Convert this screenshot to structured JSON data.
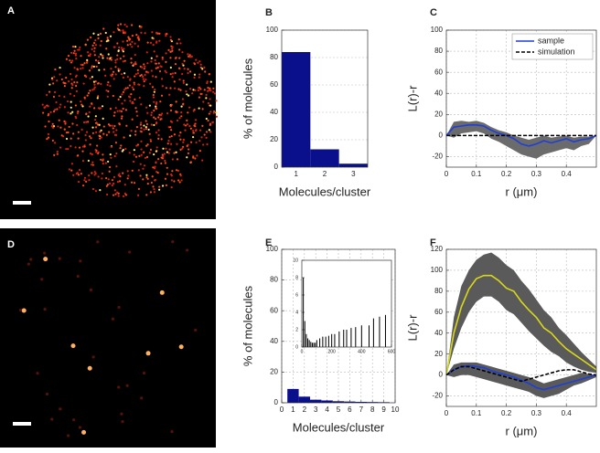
{
  "panels": [
    "A",
    "B",
    "C",
    "D",
    "E",
    "F"
  ],
  "chart_data": [
    {
      "type": "bar",
      "categories": [
        "1",
        "2",
        "3"
      ],
      "values": [
        84,
        13,
        2.5
      ],
      "color": "#0a0f8c",
      "ylim": [
        0,
        100
      ],
      "yticks": [
        0,
        20,
        40,
        60,
        80,
        100
      ],
      "grid": true,
      "y_label": "% of molecules",
      "x_label": "Molecules/cluster"
    },
    {
      "type": "line",
      "x": [
        0,
        0.025,
        0.05,
        0.075,
        0.1,
        0.125,
        0.15,
        0.175,
        0.2,
        0.225,
        0.25,
        0.275,
        0.3,
        0.325,
        0.35,
        0.375,
        0.4,
        0.425,
        0.45,
        0.475,
        0.5
      ],
      "xlim": [
        0,
        0.5
      ],
      "xticks": [
        0,
        0.1,
        0.2,
        0.3,
        0.4
      ],
      "ylim": [
        -30,
        100
      ],
      "yticks": [
        -20,
        0,
        20,
        40,
        60,
        80,
        100
      ],
      "grid": true,
      "y_label": "L(r)-r",
      "x_label": "r (μm)",
      "legend": "upper right",
      "bands": [
        {
          "color": "#6b6b6b",
          "lower": [
            0,
            -2,
            2,
            3,
            4,
            2,
            -3,
            -6,
            -10,
            -14,
            -18,
            -20,
            -22,
            -18,
            -16,
            -14,
            -12,
            -14,
            -10,
            -8,
            0
          ],
          "upper": [
            0,
            13,
            14,
            13,
            14,
            12,
            8,
            5,
            3,
            0,
            -2,
            -4,
            -2,
            0,
            -2,
            -1,
            0,
            -2,
            -1,
            -1,
            0
          ]
        }
      ],
      "series": [
        {
          "name": "sample",
          "color": "#1f3fd6",
          "values": [
            0,
            8,
            9,
            10,
            10,
            9,
            5,
            2,
            0,
            -3,
            -8,
            -10,
            -8,
            -5,
            -7,
            -5,
            -3,
            -6,
            -4,
            -3,
            0
          ]
        },
        {
          "name": "simulation",
          "color": "#000000",
          "dashed": true,
          "values": [
            0,
            0,
            0,
            0,
            0,
            0,
            0,
            0,
            0,
            0,
            0,
            0,
            0,
            0,
            0,
            0,
            0,
            0,
            0,
            0,
            0
          ]
        }
      ]
    },
    {
      "type": "bar",
      "x": [
        1,
        2,
        3,
        4,
        5,
        6,
        7,
        8,
        9
      ],
      "values": [
        9,
        4,
        2,
        1.5,
        1,
        0.8,
        0.6,
        0.5,
        0.4
      ],
      "color": "#0a0f8c",
      "xlim": [
        0,
        10
      ],
      "xticks": [
        0,
        1,
        2,
        3,
        4,
        5,
        6,
        7,
        8,
        9,
        10
      ],
      "ylim": [
        0,
        100
      ],
      "yticks": [
        0,
        20,
        40,
        60,
        80,
        100
      ],
      "grid": true,
      "y_label": "% of molecules",
      "x_label": "Molecules/cluster"
    },
    {
      "type": "bar",
      "x": [
        10,
        20,
        30,
        40,
        50,
        60,
        70,
        80,
        90,
        100,
        120,
        140,
        160,
        180,
        200,
        220,
        250,
        280,
        300,
        330,
        360,
        400,
        450,
        480,
        520,
        560
      ],
      "values": [
        8,
        3,
        1.5,
        1,
        0.8,
        0.6,
        0.5,
        0.5,
        0.5,
        0.8,
        1,
        1.2,
        1.2,
        1.3,
        1.5,
        1.5,
        1.8,
        2,
        2,
        2.2,
        2.3,
        2.5,
        2.5,
        3.3,
        3.5,
        3.7
      ],
      "color": "#000000",
      "xlim": [
        0,
        600
      ],
      "xticks": [
        0,
        200,
        400,
        600
      ],
      "ylim": [
        0,
        10
      ],
      "yticks": [
        0,
        2,
        4,
        6,
        8,
        10
      ],
      "grid": false
    },
    {
      "type": "line",
      "x": [
        0,
        0.025,
        0.05,
        0.075,
        0.1,
        0.125,
        0.15,
        0.175,
        0.2,
        0.225,
        0.25,
        0.275,
        0.3,
        0.325,
        0.35,
        0.375,
        0.4,
        0.425,
        0.45,
        0.475,
        0.5
      ],
      "xlim": [
        0,
        0.5
      ],
      "xticks": [
        0,
        0.1,
        0.2,
        0.3,
        0.4
      ],
      "ylim": [
        -30,
        120
      ],
      "yticks": [
        -20,
        0,
        20,
        40,
        60,
        80,
        100,
        120
      ],
      "grid": true,
      "y_label": "L(r)-r",
      "x_label": "r (μm)",
      "bands": [
        {
          "color": "#5a5a5a",
          "lower": [
            0,
            25,
            45,
            60,
            70,
            75,
            75,
            70,
            62,
            58,
            50,
            42,
            35,
            28,
            22,
            18,
            12,
            8,
            5,
            3,
            2
          ],
          "upper": [
            0,
            55,
            85,
            100,
            110,
            115,
            117,
            112,
            105,
            100,
            90,
            82,
            72,
            62,
            55,
            45,
            38,
            30,
            22,
            15,
            8
          ]
        },
        {
          "color": "#5a5a5a",
          "lower": [
            0,
            -2,
            0,
            0,
            -2,
            -4,
            -6,
            -8,
            -10,
            -12,
            -14,
            -16,
            -20,
            -22,
            -20,
            -18,
            -14,
            -10,
            -8,
            -5,
            -2
          ],
          "upper": [
            0,
            10,
            12,
            12,
            12,
            10,
            8,
            6,
            4,
            2,
            0,
            -2,
            -5,
            -8,
            -6,
            -4,
            -2,
            0,
            2,
            1,
            0
          ]
        }
      ],
      "series": [
        {
          "color": "#d8d81a",
          "values": [
            0,
            40,
            65,
            82,
            92,
            95,
            95,
            90,
            83,
            80,
            70,
            62,
            55,
            45,
            40,
            32,
            25,
            20,
            15,
            10,
            5
          ]
        },
        {
          "color": "#1f3fd6",
          "values": [
            0,
            5,
            8,
            9,
            8,
            7,
            4,
            2,
            0,
            -2,
            -5,
            -8,
            -12,
            -14,
            -12,
            -10,
            -8,
            -6,
            -4,
            -2,
            0
          ]
        },
        {
          "color": "#000000",
          "dashed": true,
          "values": [
            0,
            5,
            8,
            8,
            6,
            4,
            2,
            0,
            -2,
            -4,
            -6,
            -4,
            -2,
            0,
            2,
            4,
            5,
            5,
            3,
            1,
            0
          ]
        }
      ]
    }
  ]
}
